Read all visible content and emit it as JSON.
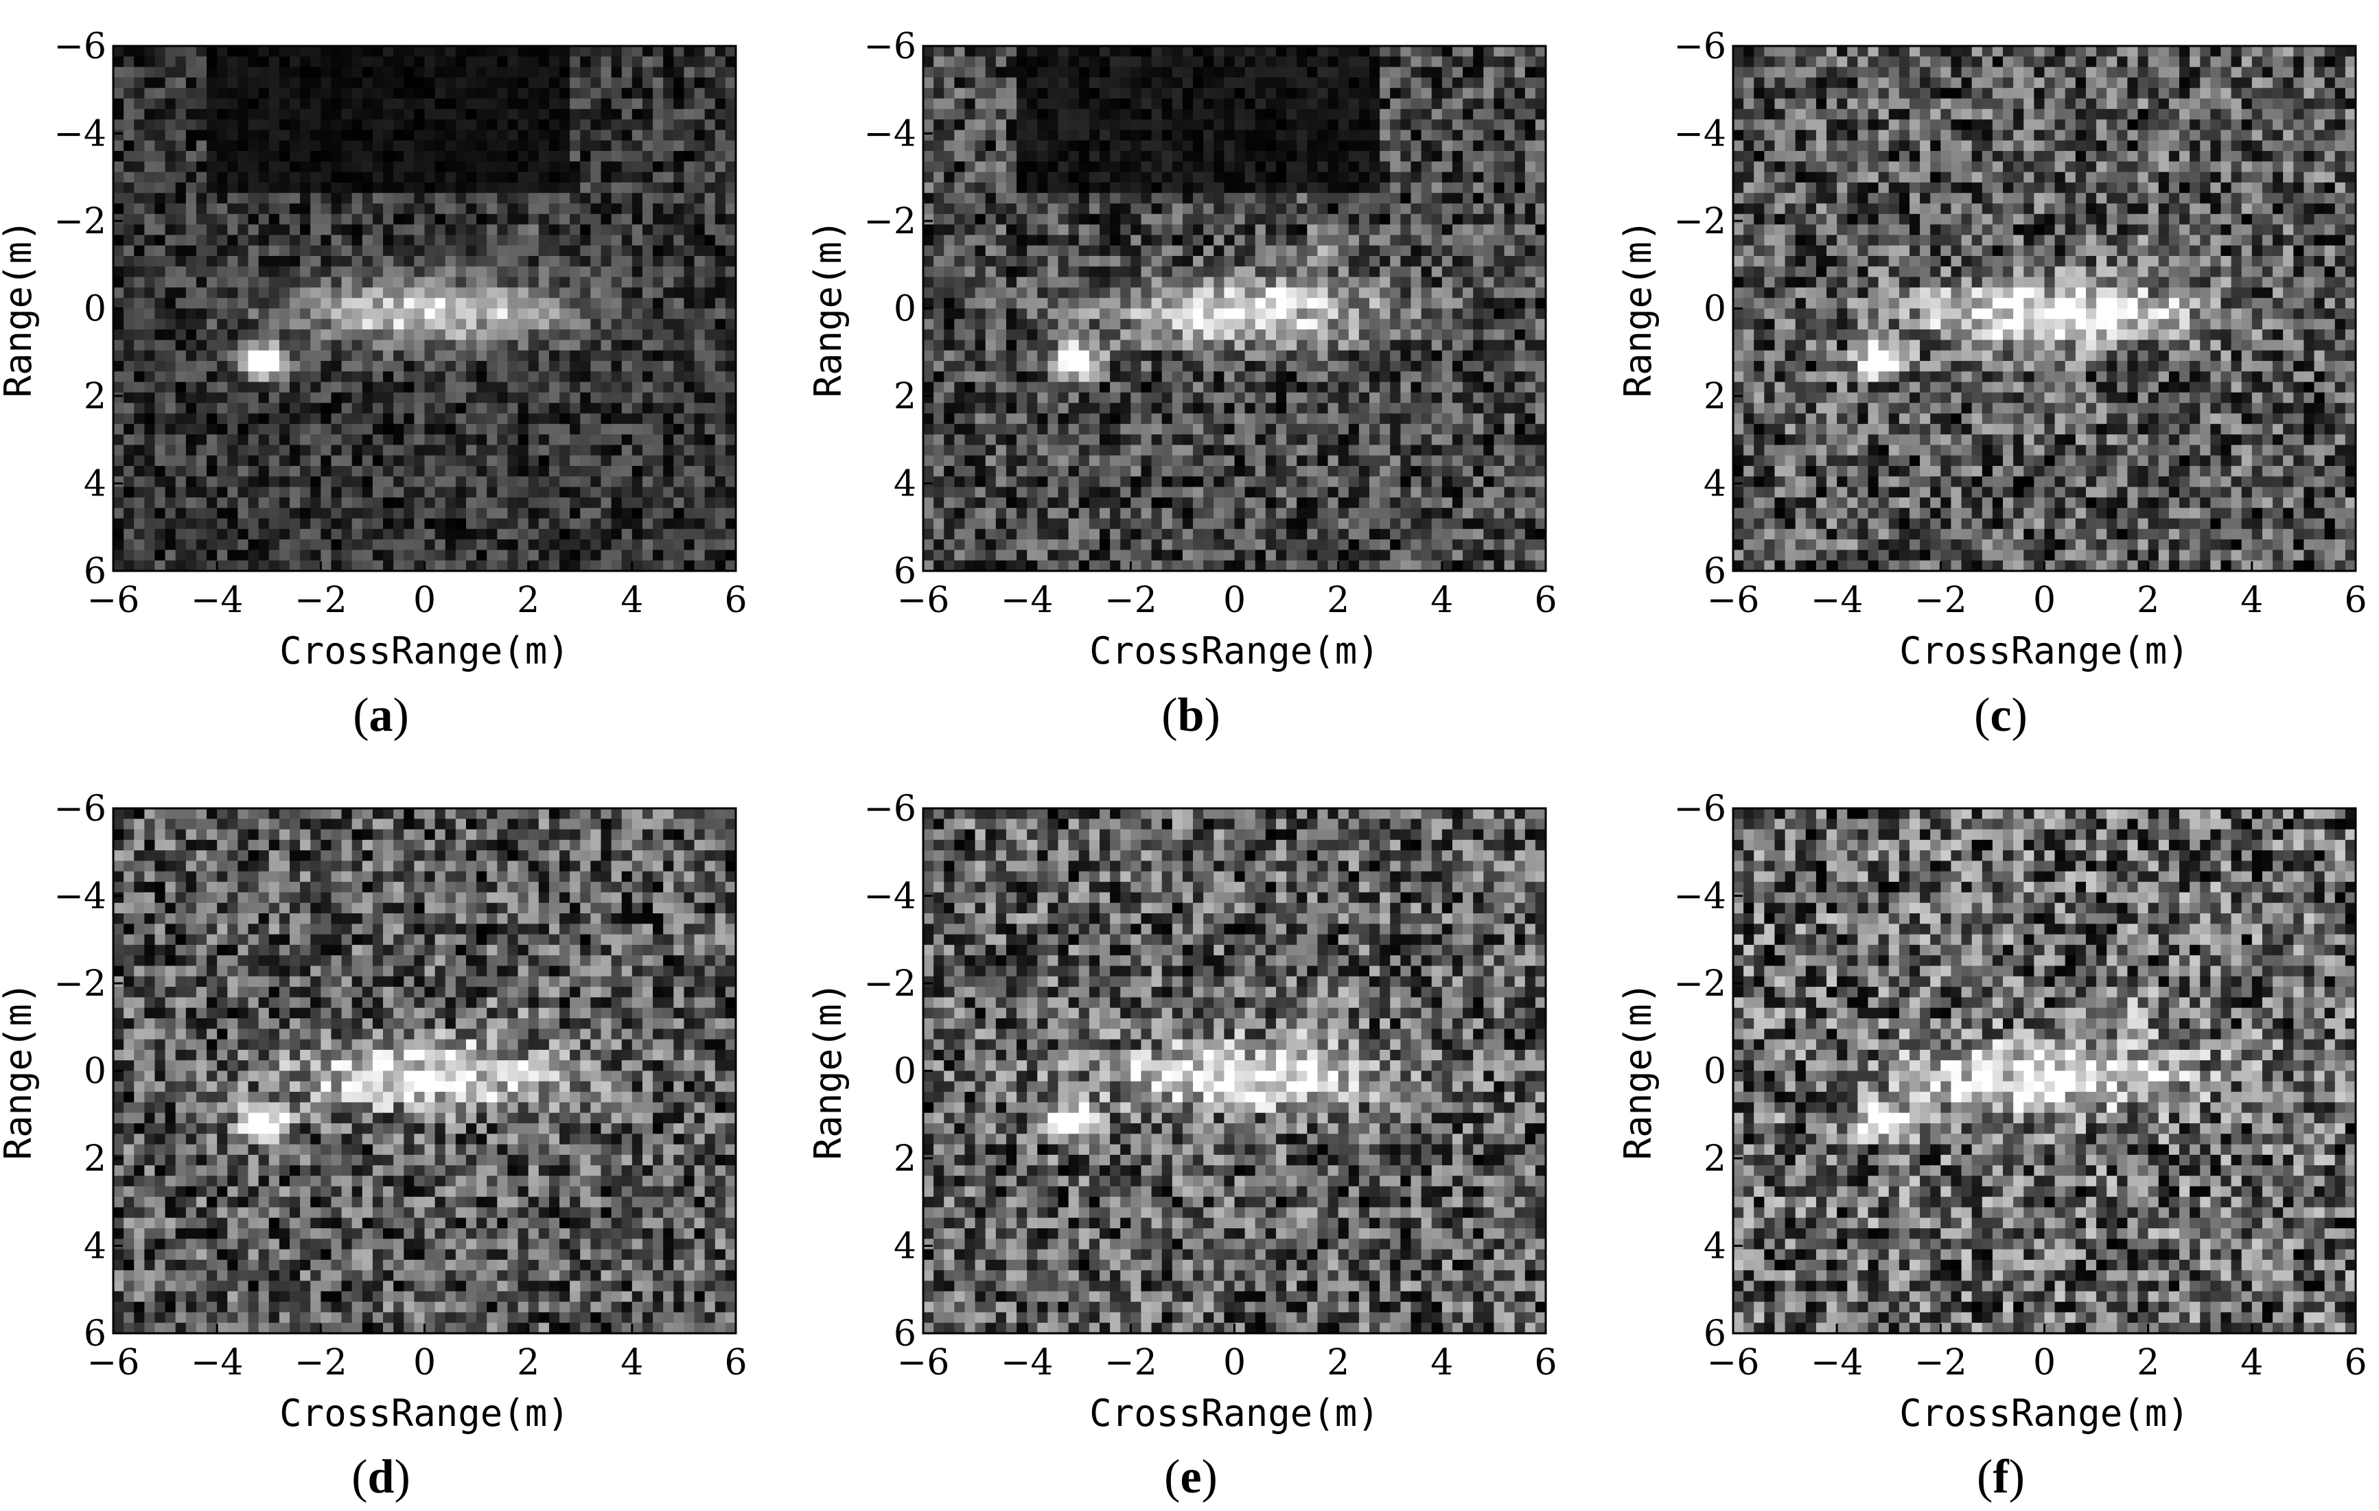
{
  "chart_data": [
    {
      "type": "heatmap",
      "panel_label": "(a)",
      "xlabel": "CrossRange(m)",
      "ylabel": "Range(m)",
      "xlim": [
        -6,
        6
      ],
      "ylim": [
        -6,
        6
      ],
      "xticks": [
        "−6",
        "−4",
        "−2",
        "0",
        "2",
        "4",
        "6"
      ],
      "yticks": [
        "−6",
        "−4",
        "−2",
        "0",
        "2",
        "4",
        "6"
      ],
      "colormap": "gray",
      "noise_level": 0.22,
      "dark_top_region": true,
      "seed": 11
    },
    {
      "type": "heatmap",
      "panel_label": "(b)",
      "xlabel": "CrossRange(m)",
      "ylabel": "Range(m)",
      "xlim": [
        -6,
        6
      ],
      "ylim": [
        -6,
        6
      ],
      "xticks": [
        "−6",
        "−4",
        "−2",
        "0",
        "2",
        "4",
        "6"
      ],
      "yticks": [
        "−6",
        "−4",
        "−2",
        "0",
        "2",
        "4",
        "6"
      ],
      "colormap": "gray",
      "noise_level": 0.3,
      "dark_top_region": true,
      "seed": 23
    },
    {
      "type": "heatmap",
      "panel_label": "(c)",
      "xlabel": "CrossRange(m)",
      "ylabel": "Range(m)",
      "xlim": [
        -6,
        6
      ],
      "ylim": [
        -6,
        6
      ],
      "xticks": [
        "−6",
        "−4",
        "−2",
        "0",
        "2",
        "4",
        "6"
      ],
      "yticks": [
        "−6",
        "−4",
        "−2",
        "0",
        "2",
        "4",
        "6"
      ],
      "colormap": "gray",
      "noise_level": 0.36,
      "dark_top_region": false,
      "seed": 37
    },
    {
      "type": "heatmap",
      "panel_label": "(d)",
      "xlabel": "CrossRange(m)",
      "ylabel": "Range(m)",
      "xlim": [
        -6,
        6
      ],
      "ylim": [
        -6,
        6
      ],
      "xticks": [
        "−6",
        "−4",
        "−2",
        "0",
        "2",
        "4",
        "6"
      ],
      "yticks": [
        "−6",
        "−4",
        "−2",
        "0",
        "2",
        "4",
        "6"
      ],
      "colormap": "gray",
      "noise_level": 0.36,
      "dark_top_region": false,
      "seed": 41
    },
    {
      "type": "heatmap",
      "panel_label": "(e)",
      "xlabel": "CrossRange(m)",
      "ylabel": "Range(m)",
      "xlim": [
        -6,
        6
      ],
      "ylim": [
        -6,
        6
      ],
      "xticks": [
        "−6",
        "−4",
        "−2",
        "0",
        "2",
        "4",
        "6"
      ],
      "yticks": [
        "−6",
        "−4",
        "−2",
        "0",
        "2",
        "4",
        "6"
      ],
      "colormap": "gray",
      "noise_level": 0.38,
      "dark_top_region": false,
      "seed": 53
    },
    {
      "type": "heatmap",
      "panel_label": "(f)",
      "xlabel": "CrossRange(m)",
      "ylabel": "Range(m)",
      "xlim": [
        -6,
        6
      ],
      "ylim": [
        -6,
        6
      ],
      "xticks": [
        "−6",
        "−4",
        "−2",
        "0",
        "2",
        "4",
        "6"
      ],
      "yticks": [
        "−6",
        "−4",
        "−2",
        "0",
        "2",
        "4",
        "6"
      ],
      "colormap": "gray",
      "noise_level": 0.42,
      "dark_top_region": false,
      "seed": 67
    }
  ]
}
